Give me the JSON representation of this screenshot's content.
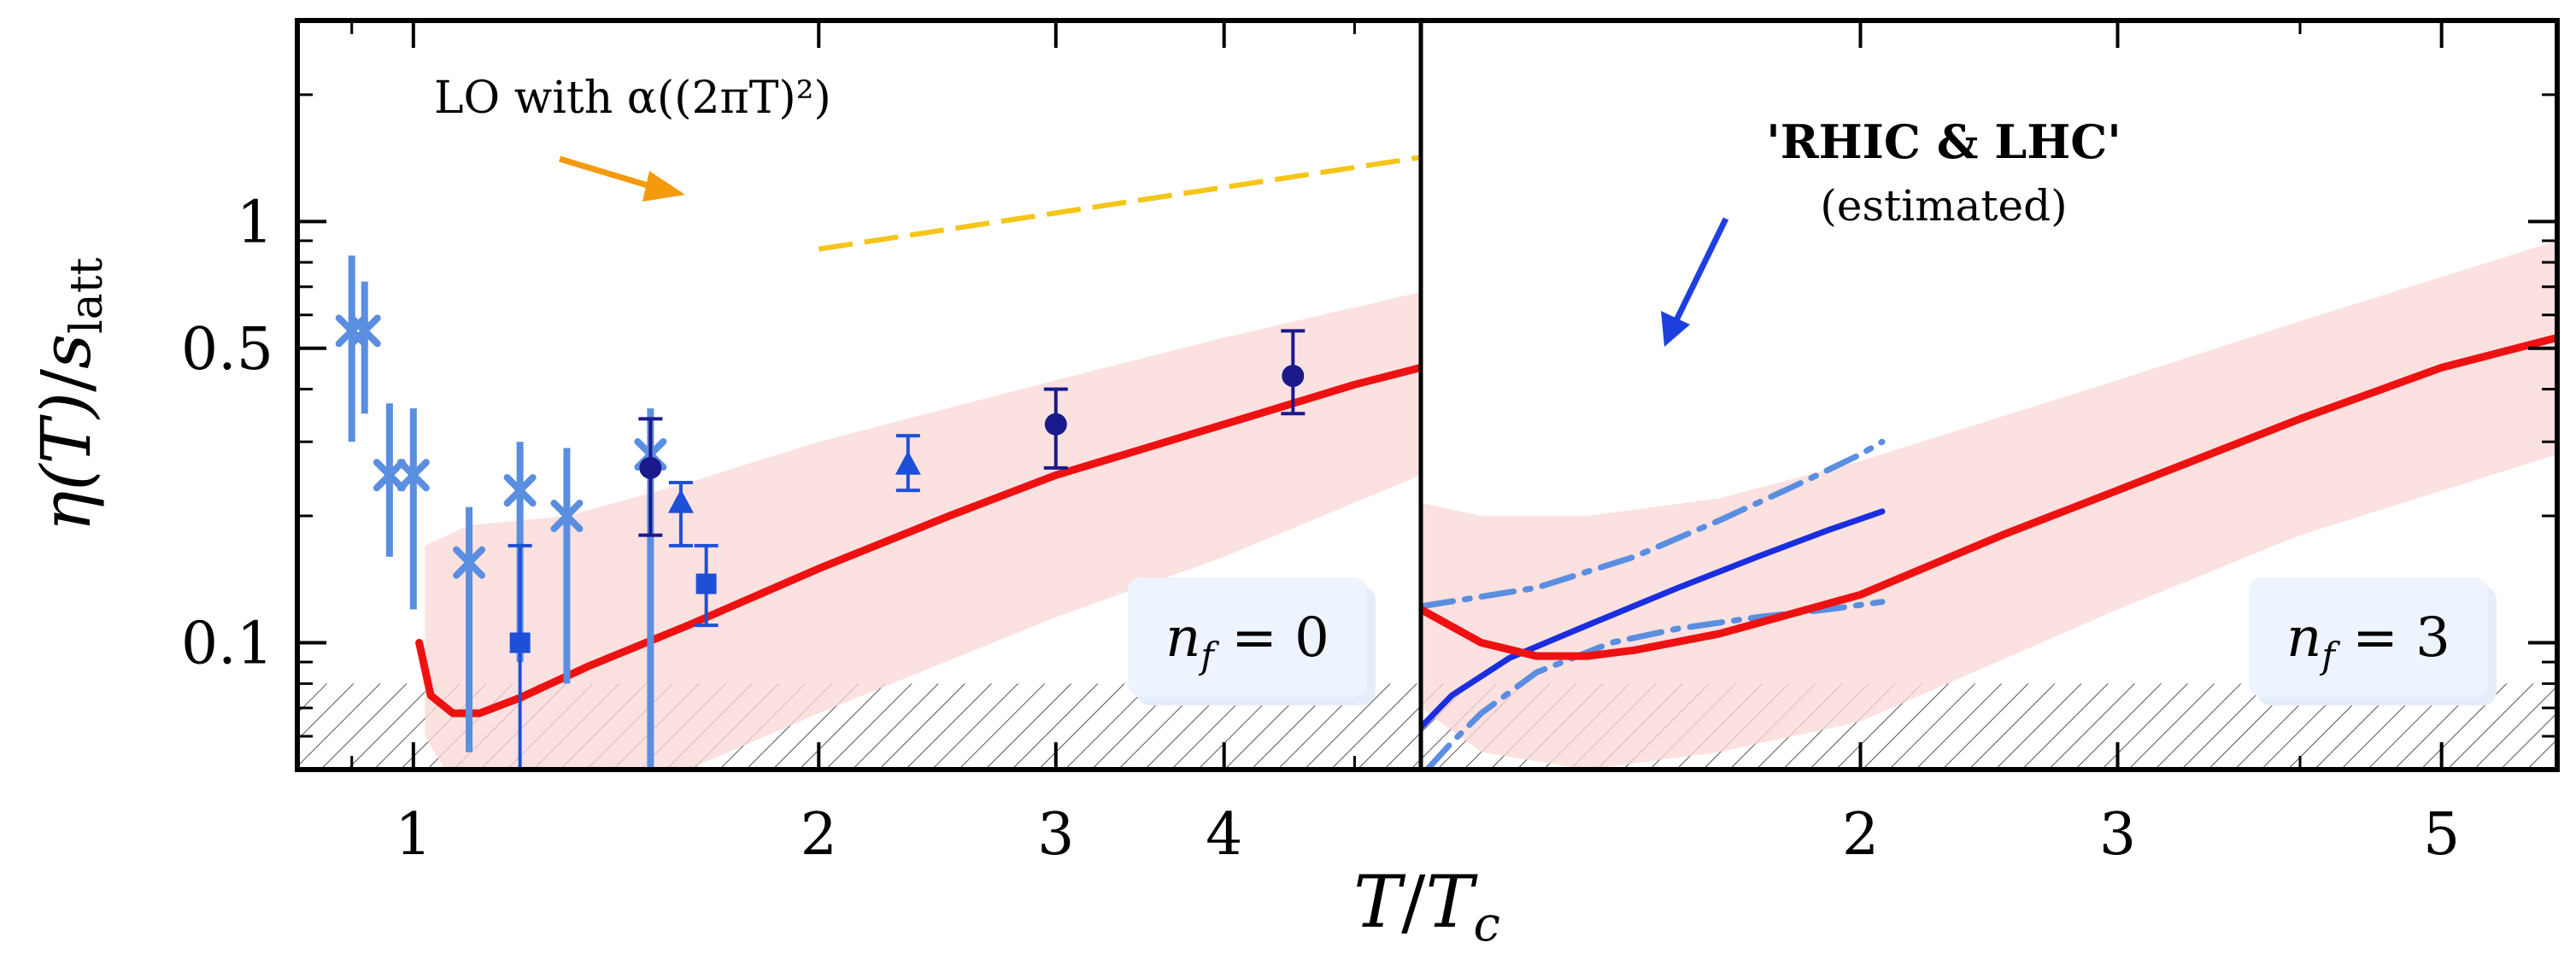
{
  "chart_data": {
    "type": "scatter",
    "ylabel": "η(T)/s_latt",
    "ylabel_parts": {
      "eta": "η(T)",
      "slash": "/",
      "s": "s",
      "sub": "latt"
    },
    "xlabel": "T/T_c",
    "xlabel_parts": {
      "T": "T",
      "slash": "/",
      "Tc": "T",
      "sub": "c"
    },
    "y_scale": "log",
    "ylim": [
      0.05,
      3.0
    ],
    "y_tick_labels": [
      "1",
      "0.5",
      "0.1"
    ],
    "y_ticks": [
      1.0,
      0.5,
      0.1
    ],
    "panels": [
      {
        "name": "nf=0",
        "label": "n_f = 0",
        "label_parts": {
          "n": "n",
          "sub": "f",
          "eq": " = 0"
        },
        "x_scale": "log",
        "xlim": [
          0.82,
          5.6
        ],
        "x_tick_labels": [
          "1",
          "2",
          "3",
          "4"
        ],
        "x_ticks": [
          1,
          2,
          3,
          4
        ],
        "annotation": "LO with α((2πT)²)",
        "lo_curve": {
          "name": "LO with α((2πT)²)",
          "x": [
            2.0,
            5.6
          ],
          "y": [
            0.86,
            1.42
          ],
          "style": "dashed",
          "color": "#f5c518"
        },
        "red_curve": {
          "x": [
            1.01,
            1.03,
            1.07,
            1.12,
            1.2,
            1.35,
            1.6,
            2.0,
            2.5,
            3.0,
            3.5,
            4.0,
            4.5,
            5.0,
            5.6
          ],
          "y": [
            0.1,
            0.075,
            0.068,
            0.068,
            0.074,
            0.088,
            0.11,
            0.15,
            0.2,
            0.25,
            0.29,
            0.33,
            0.37,
            0.41,
            0.45
          ]
        },
        "band": {
          "x": [
            1.02,
            1.1,
            1.3,
            1.6,
            2.0,
            3.0,
            4.0,
            5.6
          ],
          "lower": [
            0.06,
            0.04,
            0.042,
            0.05,
            0.068,
            0.115,
            0.16,
            0.25
          ],
          "upper": [
            0.17,
            0.19,
            0.2,
            0.24,
            0.3,
            0.42,
            0.53,
            0.68
          ]
        },
        "hatched_bound": 0.08,
        "series": [
          {
            "name": "light-blue crosses",
            "color": "#5a8ee0",
            "marker": "x",
            "x": [
              0.9,
              0.92,
              0.96,
              1.0,
              1.1,
              1.2,
              1.3,
              1.5
            ],
            "y": [
              0.55,
              0.55,
              0.25,
              0.25,
              0.155,
              0.23,
              0.2,
              0.28
            ],
            "err_low": [
              0.3,
              0.35,
              0.16,
              0.12,
              0.055,
              0.09,
              0.08,
              0.05
            ],
            "err_high": [
              0.83,
              0.72,
              0.37,
              0.36,
              0.21,
              0.3,
              0.29,
              0.36
            ]
          },
          {
            "name": "dark-blue circles",
            "color": "#1a1a8c",
            "marker": "o",
            "x": [
              1.5,
              3.0,
              4.5
            ],
            "y": [
              0.26,
              0.33,
              0.43
            ],
            "err_low": [
              0.18,
              0.26,
              0.35
            ],
            "err_high": [
              0.34,
              0.4,
              0.55
            ]
          },
          {
            "name": "blue triangles",
            "color": "#1e4fd8",
            "marker": "^",
            "x": [
              1.58,
              2.33
            ],
            "y": [
              0.215,
              0.265
            ],
            "err_low": [
              0.17,
              0.23
            ],
            "err_high": [
              0.24,
              0.31
            ]
          },
          {
            "name": "blue squares",
            "color": "#1e4fd8",
            "marker": "s",
            "x": [
              1.2,
              1.65
            ],
            "y": [
              0.1,
              0.138
            ],
            "err_low": [
              0.048,
              0.11
            ],
            "err_high": [
              0.17,
              0.17
            ]
          }
        ]
      },
      {
        "name": "nf=3",
        "label": "n_f = 3",
        "label_parts": {
          "n": "n",
          "sub": "f",
          "eq": " = 3"
        },
        "x_scale": "log",
        "xlim": [
          1.0,
          6.0
        ],
        "x_tick_labels": [
          "2",
          "3",
          "5"
        ],
        "x_ticks": [
          2,
          3,
          5
        ],
        "annotation_title": "'RHIC & LHC'",
        "annotation_sub": "(estimated)",
        "red_curve": {
          "x": [
            1.0,
            1.1,
            1.2,
            1.3,
            1.4,
            1.6,
            2.0,
            2.5,
            3.0,
            4.0,
            5.0,
            6.0
          ],
          "y": [
            0.12,
            0.1,
            0.093,
            0.093,
            0.096,
            0.105,
            0.13,
            0.18,
            0.23,
            0.34,
            0.45,
            0.53
          ]
        },
        "band": {
          "x": [
            1.0,
            1.1,
            1.3,
            1.6,
            2.0,
            3.0,
            4.0,
            6.0
          ],
          "lower": [
            0.07,
            0.055,
            0.05,
            0.055,
            0.065,
            0.12,
            0.18,
            0.28
          ],
          "upper": [
            0.215,
            0.2,
            0.2,
            0.22,
            0.27,
            0.42,
            0.58,
            0.9
          ]
        },
        "hatched_bound": 0.08,
        "blue_curve": {
          "x": [
            1.0,
            1.05,
            1.15,
            1.3,
            1.5,
            1.7,
            1.9,
            2.07
          ],
          "y": [
            0.063,
            0.075,
            0.092,
            0.11,
            0.135,
            0.16,
            0.185,
            0.205
          ]
        },
        "dashdot_upper": {
          "x": [
            1.0,
            1.2,
            1.4,
            1.6,
            1.8,
            2.0,
            2.07
          ],
          "y": [
            0.122,
            0.135,
            0.16,
            0.195,
            0.235,
            0.28,
            0.3
          ]
        },
        "dashdot_lower": {
          "x": [
            1.01,
            1.05,
            1.1,
            1.2,
            1.35,
            1.5,
            1.7,
            1.9,
            2.07
          ],
          "y": [
            0.05,
            0.058,
            0.068,
            0.085,
            0.1,
            0.108,
            0.115,
            0.12,
            0.125
          ]
        }
      }
    ]
  }
}
